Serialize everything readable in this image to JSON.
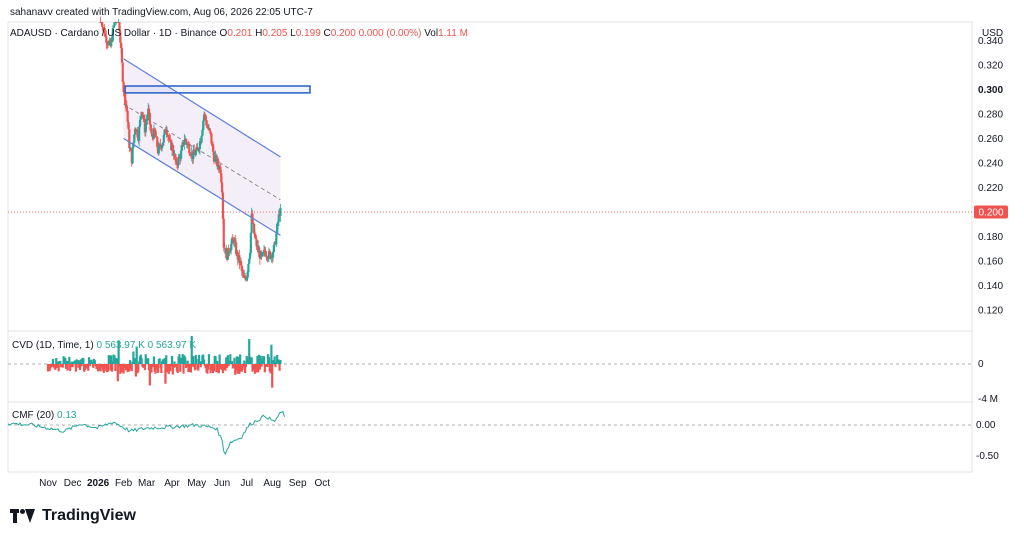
{
  "watermark": "sahanavv created with TradingView.com, Aug 06, 2026 22:05 UTC-7",
  "legend": {
    "symbol": "ADAUSD · Cardano / US Dollar · 1D · Binance",
    "o_label": "O",
    "o_value": "0.201",
    "h_label": "H",
    "h_value": "0.205",
    "l_label": "L",
    "l_value": "0.199",
    "c_label": "C",
    "c_value": "0.200 0.000 (0.00%)",
    "vol_label": "Vol",
    "vol_value": "1.11 M"
  },
  "cvd_legend": {
    "label": "CVD (1D, Time, 1)",
    "v1": "0",
    "v2": "563.97 K",
    "v3": "0",
    "v4": "563.97 K"
  },
  "cmf_legend": {
    "label": "CMF (20)",
    "value": "0.13"
  },
  "brand": "TradingView",
  "colors": {
    "up": "#26a69a",
    "down": "#ef5350",
    "channel": "#5b7fd6",
    "zone": "#3366cc",
    "fill": "#f3ecf8"
  },
  "chart_data": {
    "type": "candlestick",
    "title": "ADAUSD · Cardano / US Dollar · 1D · Binance",
    "y_axis_unit": "USD",
    "y_ticks": [
      0.34,
      0.32,
      0.3,
      0.28,
      0.26,
      0.24,
      0.22,
      0.2,
      0.18,
      0.16,
      0.14,
      0.12
    ],
    "y_tick_labels": [
      "0.340",
      "0.320",
      "0.300",
      "0.280",
      "0.260",
      "0.240",
      "0.220",
      "0.200",
      "0.180",
      "0.160",
      "0.140",
      "0.120"
    ],
    "ylim": [
      0.103,
      0.355
    ],
    "current_price": 0.2,
    "current_price_label": "0.200",
    "highlight_level": 0.3,
    "highlight_label": "0.300",
    "x_labels": [
      "Nov",
      "Dec",
      "2026",
      "Feb",
      "Mar",
      "Apr",
      "May",
      "Jun",
      "Jul",
      "Aug",
      "Sep",
      "Oct"
    ],
    "x_label_days": [
      0,
      30,
      61,
      92,
      120,
      151,
      181,
      212,
      242,
      273,
      304,
      334
    ],
    "price_path": [
      [
        64,
        0.36
      ],
      [
        70,
        0.343
      ],
      [
        76,
        0.335
      ],
      [
        81,
        0.355
      ],
      [
        86,
        0.36
      ],
      [
        92,
        0.3
      ],
      [
        96,
        0.283
      ],
      [
        99,
        0.255
      ],
      [
        102,
        0.243
      ],
      [
        106,
        0.27
      ],
      [
        110,
        0.262
      ],
      [
        114,
        0.285
      ],
      [
        118,
        0.268
      ],
      [
        122,
        0.282
      ],
      [
        126,
        0.262
      ],
      [
        130,
        0.265
      ],
      [
        134,
        0.25
      ],
      [
        140,
        0.258
      ],
      [
        144,
        0.27
      ],
      [
        148,
        0.256
      ],
      [
        152,
        0.252
      ],
      [
        156,
        0.238
      ],
      [
        162,
        0.248
      ],
      [
        166,
        0.26
      ],
      [
        170,
        0.255
      ],
      [
        176,
        0.246
      ],
      [
        182,
        0.25
      ],
      [
        186,
        0.26
      ],
      [
        190,
        0.28
      ],
      [
        194,
        0.27
      ],
      [
        198,
        0.262
      ],
      [
        202,
        0.245
      ],
      [
        206,
        0.24
      ],
      [
        210,
        0.235
      ],
      [
        212,
        0.22
      ],
      [
        214,
        0.173
      ],
      [
        218,
        0.165
      ],
      [
        222,
        0.172
      ],
      [
        226,
        0.178
      ],
      [
        230,
        0.165
      ],
      [
        234,
        0.158
      ],
      [
        238,
        0.145
      ],
      [
        242,
        0.148
      ],
      [
        246,
        0.17
      ],
      [
        248,
        0.196
      ],
      [
        252,
        0.178
      ],
      [
        256,
        0.168
      ],
      [
        260,
        0.162
      ],
      [
        264,
        0.168
      ],
      [
        268,
        0.165
      ],
      [
        272,
        0.165
      ],
      [
        276,
        0.172
      ],
      [
        278,
        0.182
      ],
      [
        280,
        0.192
      ],
      [
        282,
        0.2
      ],
      [
        283,
        0.2
      ]
    ],
    "channel": {
      "upper": [
        [
          92,
          0.325
        ],
        [
          283,
          0.245
        ]
      ],
      "middle": [
        [
          92,
          0.288
        ],
        [
          283,
          0.21
        ]
      ],
      "lower": [
        [
          92,
          0.26
        ],
        [
          283,
          0.181
        ]
      ]
    },
    "indicators": {
      "cvd": {
        "label": "CVD (1D, Time, 1)",
        "value": "563.97 K",
        "y_tick_labels": [
          "0",
          "-4 M"
        ]
      },
      "cmf": {
        "label": "CMF (20)",
        "value": 0.13,
        "y_ticks": [
          0.0,
          -0.5
        ],
        "y_tick_labels": [
          "0.00",
          "-0.50"
        ]
      }
    }
  }
}
